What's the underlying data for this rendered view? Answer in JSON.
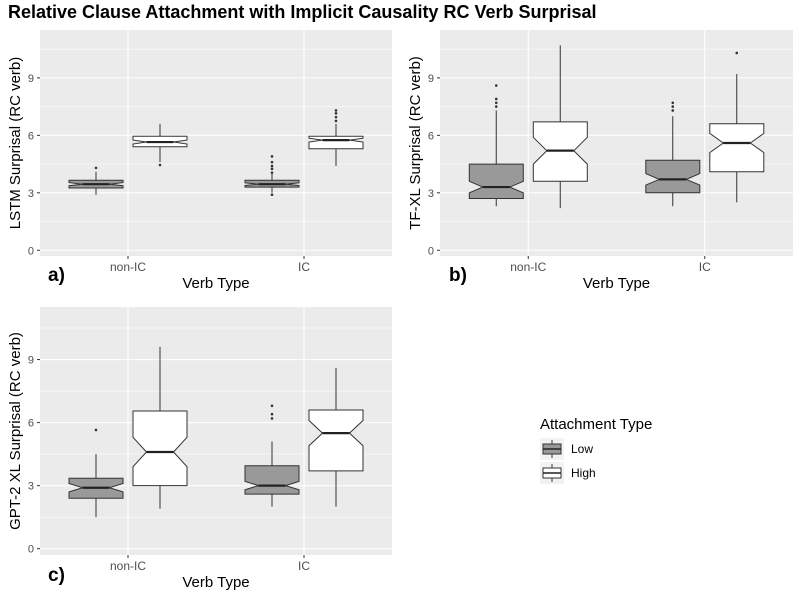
{
  "figure": {
    "title": "Relative Clause Attachment with Implicit Causality RC Verb Surprisal"
  },
  "legend": {
    "title": "Attachment Type",
    "placement": "right",
    "entries": [
      {
        "label": "Low",
        "color": "#999999"
      },
      {
        "label": "High",
        "color": "#ffffff"
      }
    ]
  },
  "colors": {
    "panel_background": "#ebebeb",
    "grid": "#ffffff",
    "low_fill": "#999999",
    "high_fill": "#ffffff",
    "box_stroke": "#333333"
  },
  "chart_data": [
    {
      "type": "boxplot",
      "panel_label": "a)",
      "xlabel": "Verb Type",
      "ylabel": "LSTM Surprisal (RC verb)",
      "categories": [
        "non-IC",
        "IC"
      ],
      "ylim": [
        -0.3,
        11.5
      ],
      "yticks": [
        0,
        3,
        6,
        9
      ],
      "notched": true,
      "grid": true,
      "series": [
        {
          "name": "Low",
          "boxes": [
            {
              "min": 2.9,
              "q1": 3.25,
              "median": 3.45,
              "q3": 3.65,
              "max": 4.1,
              "notch": [
                3.37,
                3.53
              ],
              "outliers": [
                4.3
              ]
            },
            {
              "min": 3.0,
              "q1": 3.3,
              "median": 3.45,
              "q3": 3.65,
              "max": 4.0,
              "notch": [
                3.38,
                3.52
              ],
              "outliers": [
                2.9,
                4.05,
                4.25,
                4.4,
                4.6,
                4.9
              ]
            }
          ]
        },
        {
          "name": "High",
          "boxes": [
            {
              "min": 4.6,
              "q1": 5.4,
              "median": 5.65,
              "q3": 5.95,
              "max": 6.6,
              "notch": [
                5.55,
                5.75
              ],
              "outliers": [
                4.45
              ]
            },
            {
              "min": 4.4,
              "q1": 5.3,
              "median": 5.75,
              "q3": 5.95,
              "max": 6.6,
              "notch": [
                5.65,
                5.85
              ],
              "outliers": [
                6.75,
                6.95,
                7.15,
                7.3
              ]
            }
          ]
        }
      ]
    },
    {
      "type": "boxplot",
      "panel_label": "b)",
      "xlabel": "Verb Type",
      "ylabel": "TF-XL Surprisal (RC verb)",
      "categories": [
        "non-IC",
        "IC"
      ],
      "ylim": [
        -0.3,
        11.5
      ],
      "yticks": [
        0,
        3,
        6,
        9
      ],
      "notched": true,
      "grid": true,
      "series": [
        {
          "name": "Low",
          "boxes": [
            {
              "min": 2.3,
              "q1": 2.7,
              "median": 3.3,
              "q3": 4.5,
              "max": 7.3,
              "notch": [
                3.0,
                3.6
              ],
              "outliers": [
                7.5,
                7.7,
                7.9,
                8.6
              ]
            },
            {
              "min": 2.3,
              "q1": 3.0,
              "median": 3.7,
              "q3": 4.7,
              "max": 7.0,
              "notch": [
                3.4,
                4.0
              ],
              "outliers": [
                7.3,
                7.5,
                7.7
              ]
            }
          ]
        },
        {
          "name": "High",
          "boxes": [
            {
              "min": 2.2,
              "q1": 3.6,
              "median": 5.2,
              "q3": 6.7,
              "max": 10.7,
              "notch": [
                4.5,
                5.9
              ],
              "outliers": []
            },
            {
              "min": 2.5,
              "q1": 4.1,
              "median": 5.6,
              "q3": 6.6,
              "max": 9.2,
              "notch": [
                5.1,
                6.1
              ],
              "outliers": [
                10.3
              ]
            }
          ]
        }
      ]
    },
    {
      "type": "boxplot",
      "panel_label": "c)",
      "xlabel": "Verb Type",
      "ylabel": "GPT-2 XL Surprisal (RC verb)",
      "categories": [
        "non-IC",
        "IC"
      ],
      "ylim": [
        -0.3,
        11.5
      ],
      "yticks": [
        0,
        3,
        6,
        9
      ],
      "notched": true,
      "grid": true,
      "series": [
        {
          "name": "Low",
          "boxes": [
            {
              "min": 1.5,
              "q1": 2.4,
              "median": 2.9,
              "q3": 3.35,
              "max": 4.5,
              "notch": [
                2.7,
                3.1
              ],
              "outliers": [
                5.65
              ]
            },
            {
              "min": 2.0,
              "q1": 2.6,
              "median": 3.0,
              "q3": 3.95,
              "max": 5.1,
              "notch": [
                2.8,
                3.2
              ],
              "outliers": [
                6.2,
                6.4,
                6.8
              ]
            }
          ]
        },
        {
          "name": "High",
          "boxes": [
            {
              "min": 1.9,
              "q1": 3.0,
              "median": 4.6,
              "q3": 6.55,
              "max": 9.6,
              "notch": [
                3.9,
                5.3
              ],
              "outliers": []
            },
            {
              "min": 2.0,
              "q1": 3.7,
              "median": 5.5,
              "q3": 6.6,
              "max": 8.6,
              "notch": [
                4.9,
                6.1
              ],
              "outliers": []
            }
          ]
        }
      ]
    }
  ]
}
